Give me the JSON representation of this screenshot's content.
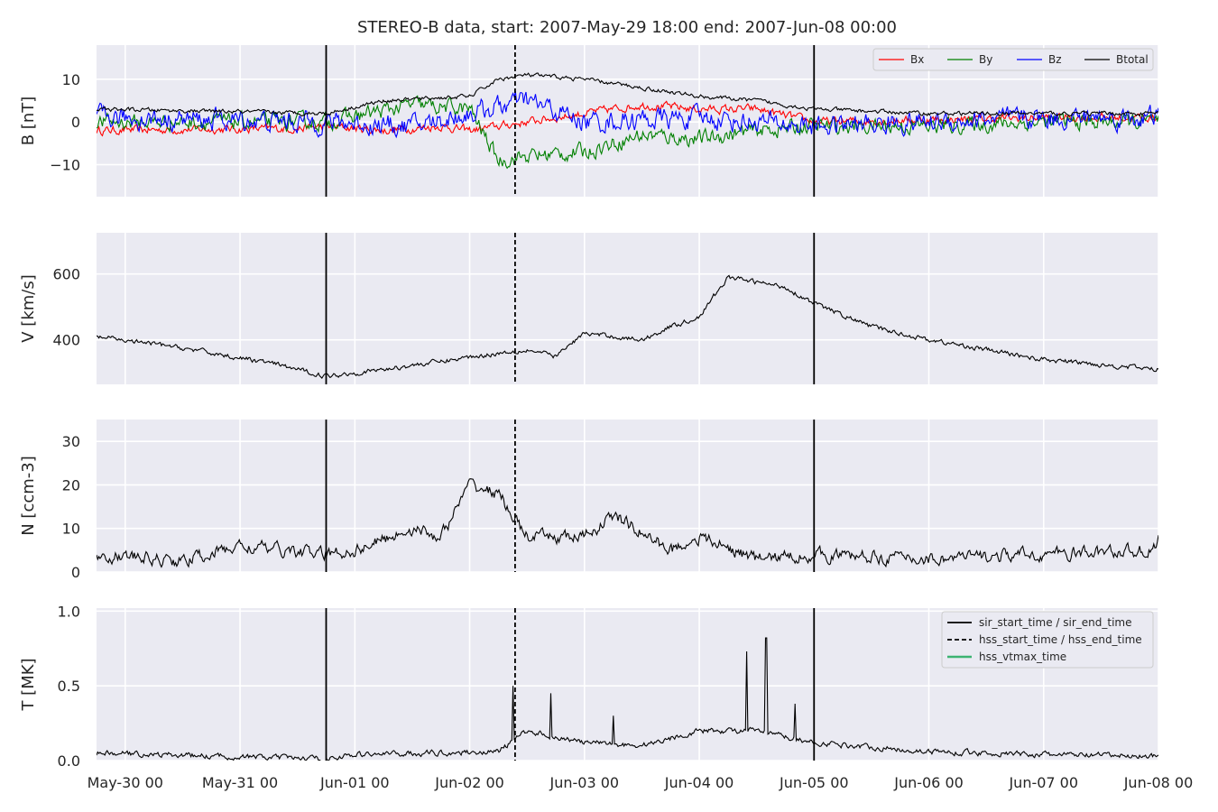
{
  "title": "STEREO-B data, start: 2007-May-29 18:00  end: 2007-Jun-08 00:00",
  "colors": {
    "axes_bg": "#EAEAF2",
    "grid": "#ffffff",
    "Bx": "#ff0000",
    "By": "#008000",
    "Bz": "#0000ff",
    "Btotal": "#000000",
    "vtmax": "#3cb371"
  },
  "chart_data": {
    "type": "line",
    "x_axis": {
      "start": "2007-05-29 18:00",
      "end": "2007-06-08 00:00",
      "tick_labels": [
        "May-30 00",
        "May-31 00",
        "Jun-01 00",
        "Jun-02 00",
        "Jun-03 00",
        "Jun-04 00",
        "Jun-05 00",
        "Jun-06 00",
        "Jun-07 00",
        "Jun-08 00"
      ]
    },
    "event_lines": [
      {
        "legend": "sir_start_time / sir_end_time",
        "style": "solid",
        "times": [
          "2007-05-31 18:00",
          "2007-06-05 00:00"
        ]
      },
      {
        "legend": "hss_start_time / hss_end_time",
        "style": "dashed",
        "times": [
          "2007-06-02 09:30"
        ]
      },
      {
        "legend": "hss_vtmax_time",
        "style": "solid-green",
        "times": []
      }
    ],
    "panels": [
      {
        "id": "B",
        "ylabel": "B [nT]",
        "ylim": [
          -17.5,
          18
        ],
        "yticks": [
          -10,
          0,
          10
        ],
        "ytick_labels": [
          "−10",
          "0",
          "10"
        ],
        "legend": [
          "Bx",
          "By",
          "Bz",
          "Btotal"
        ],
        "legend_position": "top-right",
        "series": [
          {
            "name": "Bx",
            "color_key": "Bx",
            "noise": 0.8,
            "points": [
              [
                "2007-05-29 18:00",
                -2
              ],
              [
                "2007-05-31 12:00",
                -1.5
              ],
              [
                "2007-05-31 18:00",
                -1
              ],
              [
                "2007-06-01 06:00",
                -2
              ],
              [
                "2007-06-01 18:00",
                -1
              ],
              [
                "2007-06-02 00:00",
                -2
              ],
              [
                "2007-06-02 12:00",
                0
              ],
              [
                "2007-06-03 00:00",
                2
              ],
              [
                "2007-06-03 12:00",
                4
              ],
              [
                "2007-06-04 00:00",
                3
              ],
              [
                "2007-06-04 12:00",
                3
              ],
              [
                "2007-06-05 00:00",
                0
              ],
              [
                "2007-06-06 00:00",
                0.5
              ],
              [
                "2007-06-07 00:00",
                1
              ],
              [
                "2007-06-08 00:00",
                1
              ]
            ]
          },
          {
            "name": "By",
            "color_key": "By",
            "noise": 1.5,
            "points": [
              [
                "2007-05-29 18:00",
                0
              ],
              [
                "2007-05-31 18:00",
                0
              ],
              [
                "2007-06-01 12:00",
                4
              ],
              [
                "2007-06-02 00:00",
                3
              ],
              [
                "2007-06-02 06:00",
                -9
              ],
              [
                "2007-06-02 12:00",
                -8
              ],
              [
                "2007-06-03 00:00",
                -7
              ],
              [
                "2007-06-03 12:00",
                -3
              ],
              [
                "2007-06-04 00:00",
                -4
              ],
              [
                "2007-06-04 12:00",
                -2
              ],
              [
                "2007-06-05 00:00",
                -1
              ],
              [
                "2007-06-06 00:00",
                -1
              ],
              [
                "2007-06-07 00:00",
                0
              ],
              [
                "2007-06-08 00:00",
                0
              ]
            ]
          },
          {
            "name": "Bz",
            "color_key": "Bz",
            "noise": 2.0,
            "points": [
              [
                "2007-05-29 18:00",
                1
              ],
              [
                "2007-05-31 18:00",
                0
              ],
              [
                "2007-06-01 12:00",
                -1
              ],
              [
                "2007-06-02 00:00",
                2
              ],
              [
                "2007-06-02 12:00",
                5
              ],
              [
                "2007-06-03 00:00",
                0
              ],
              [
                "2007-06-04 00:00",
                1
              ],
              [
                "2007-06-05 00:00",
                -1
              ],
              [
                "2007-06-06 00:00",
                0
              ],
              [
                "2007-06-07 00:00",
                1
              ],
              [
                "2007-06-08 00:00",
                1
              ]
            ]
          },
          {
            "name": "Btotal",
            "color_key": "Btotal",
            "noise": 0.4,
            "points": [
              [
                "2007-05-29 18:00",
                3
              ],
              [
                "2007-05-31 18:00",
                2
              ],
              [
                "2007-06-01 06:00",
                5
              ],
              [
                "2007-06-02 00:00",
                6
              ],
              [
                "2007-06-02 06:00",
                10
              ],
              [
                "2007-06-02 12:00",
                11
              ],
              [
                "2007-06-03 00:00",
                10
              ],
              [
                "2007-06-03 12:00",
                8
              ],
              [
                "2007-06-04 00:00",
                6
              ],
              [
                "2007-06-04 12:00",
                5
              ],
              [
                "2007-06-05 00:00",
                3
              ],
              [
                "2007-06-06 00:00",
                2
              ],
              [
                "2007-06-07 00:00",
                2
              ],
              [
                "2007-06-08 00:00",
                2
              ]
            ]
          }
        ]
      },
      {
        "id": "V",
        "ylabel": "V [km/s]",
        "ylim": [
          265,
          725
        ],
        "yticks": [
          400,
          600
        ],
        "ytick_labels": [
          "400",
          "600"
        ],
        "series": [
          {
            "name": "V",
            "color_key": "Btotal",
            "noise": 6,
            "points": [
              [
                "2007-05-29 18:00",
                410
              ],
              [
                "2007-05-30 12:00",
                375
              ],
              [
                "2007-05-31 06:00",
                330
              ],
              [
                "2007-05-31 18:00",
                290
              ],
              [
                "2007-06-01 06:00",
                310
              ],
              [
                "2007-06-01 18:00",
                335
              ],
              [
                "2007-06-02 06:00",
                360
              ],
              [
                "2007-06-02 12:00",
                370
              ],
              [
                "2007-06-02 18:00",
                350
              ],
              [
                "2007-06-03 00:00",
                420
              ],
              [
                "2007-06-03 12:00",
                400
              ],
              [
                "2007-06-03 18:00",
                440
              ],
              [
                "2007-06-04 00:00",
                470
              ],
              [
                "2007-06-04 06:00",
                590
              ],
              [
                "2007-06-04 18:00",
                560
              ],
              [
                "2007-06-05 00:00",
                510
              ],
              [
                "2007-06-05 12:00",
                440
              ],
              [
                "2007-06-06 00:00",
                400
              ],
              [
                "2007-06-07 00:00",
                340
              ],
              [
                "2007-06-08 00:00",
                310
              ]
            ]
          }
        ]
      },
      {
        "id": "N",
        "ylabel": "N [ccm-3]",
        "ylim": [
          0,
          35
        ],
        "yticks": [
          0,
          10,
          20,
          30
        ],
        "ytick_labels": [
          "0",
          "10",
          "20",
          "30"
        ],
        "series": [
          {
            "name": "N",
            "color_key": "Btotal",
            "noise": 1.2,
            "points": [
              [
                "2007-05-29 18:00",
                4
              ],
              [
                "2007-05-30 12:00",
                2.5
              ],
              [
                "2007-05-31 00:00",
                6
              ],
              [
                "2007-05-31 18:00",
                4
              ],
              [
                "2007-06-01 00:00",
                5
              ],
              [
                "2007-06-01 12:00",
                10
              ],
              [
                "2007-06-01 18:00",
                8
              ],
              [
                "2007-06-02 00:00",
                20
              ],
              [
                "2007-06-02 06:00",
                18
              ],
              [
                "2007-06-02 12:00",
                8
              ],
              [
                "2007-06-03 00:00",
                8
              ],
              [
                "2007-06-03 06:00",
                13
              ],
              [
                "2007-06-03 18:00",
                5
              ],
              [
                "2007-06-04 00:00",
                8
              ],
              [
                "2007-06-04 12:00",
                3
              ],
              [
                "2007-06-05 00:00",
                4
              ],
              [
                "2007-06-06 00:00",
                3
              ],
              [
                "2007-06-07 00:00",
                4
              ],
              [
                "2007-06-07 23:00",
                5
              ],
              [
                "2007-06-08 00:00",
                8
              ]
            ]
          }
        ]
      },
      {
        "id": "T",
        "ylabel": "T [MK]",
        "ylim": [
          0,
          1.02
        ],
        "yticks": [
          0.0,
          0.5,
          1.0
        ],
        "ytick_labels": [
          "0.0",
          "0.5",
          "1.0"
        ],
        "legend": [
          "sir_start_time / sir_end_time",
          "hss_start_time / hss_end_time",
          "hss_vtmax_time"
        ],
        "legend_position": "top-right",
        "series": [
          {
            "name": "T",
            "color_key": "Btotal",
            "noise": 0.015,
            "points": [
              [
                "2007-05-29 18:00",
                0.05
              ],
              [
                "2007-05-31 18:00",
                0.01
              ],
              [
                "2007-06-01 00:00",
                0.04
              ],
              [
                "2007-06-02 06:00",
                0.06
              ],
              [
                "2007-06-02 12:00",
                0.2
              ],
              [
                "2007-06-03 00:00",
                0.12
              ],
              [
                "2007-06-03 12:00",
                0.1
              ],
              [
                "2007-06-04 00:00",
                0.2
              ],
              [
                "2007-06-04 12:00",
                0.2
              ],
              [
                "2007-06-05 00:00",
                0.12
              ],
              [
                "2007-06-06 00:00",
                0.06
              ],
              [
                "2007-06-07 00:00",
                0.04
              ],
              [
                "2007-06-08 00:00",
                0.03
              ]
            ],
            "spikes": [
              [
                "2007-06-02 09:00",
                0.5
              ],
              [
                "2007-06-02 17:00",
                0.45
              ],
              [
                "2007-06-04 10:00",
                0.73
              ],
              [
                "2007-06-04 14:00",
                0.82
              ],
              [
                "2007-06-03 06:00",
                0.3
              ],
              [
                "2007-06-04 20:00",
                0.38
              ]
            ]
          }
        ]
      }
    ]
  }
}
